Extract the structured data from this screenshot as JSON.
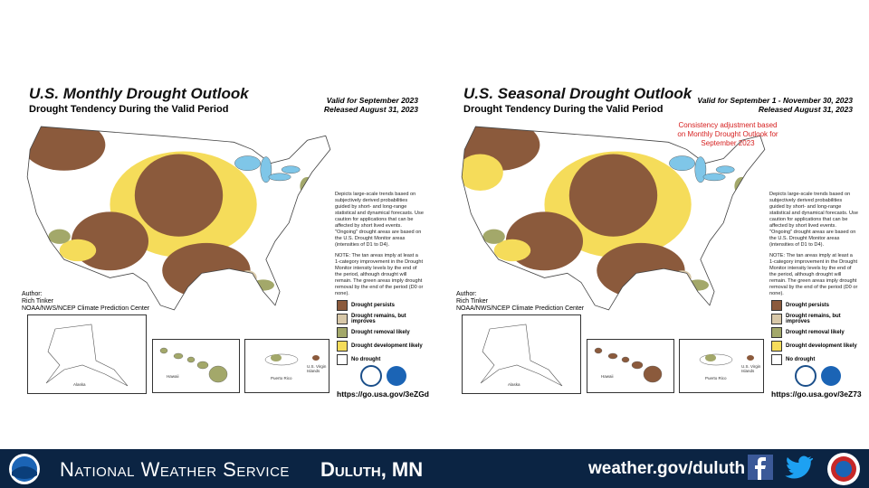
{
  "panels": [
    {
      "title": "U.S. Monthly Drought Outlook",
      "subtitle": "Drought Tendency During the Valid Period",
      "valid": "Valid for September 2023",
      "released": "Released August 31, 2023",
      "description": "Depicts large-scale trends based on subjectively derived probabilities guided by short- and long-range statistical and dynamical forecasts. Use caution for applications that can be affected by short lived events. \"Ongoing\" drought areas are based on the U.S. Drought Monitor areas (intensities of D1 to D4).",
      "note": "NOTE: The tan areas imply at least a 1-category improvement in the Drought Monitor intensity levels by the end of the period, although drought will remain. The green areas imply drought removal by the end of the period (D0 or none).",
      "author": {
        "label": "Author:",
        "name": "Rich Tinker",
        "org": "NOAA/NWS/NCEP Climate Prediction Center"
      },
      "legend": [
        {
          "label": "Drought persists",
          "color": "#8b5a3c"
        },
        {
          "label": "Drought remains, but improves",
          "color": "#d8c8a8"
        },
        {
          "label": "Drought removal likely",
          "color": "#a3a86a"
        },
        {
          "label": "Drought development likely",
          "color": "#f5dc5a"
        },
        {
          "label": "No drought",
          "color": "#ffffff"
        }
      ],
      "insets": [
        "Alaska",
        "Hawaii",
        "Puerto Rico",
        "U.S. Virgin Islands"
      ],
      "url": "https://go.usa.gov/3eZGd"
    },
    {
      "title": "U.S. Seasonal Drought Outlook",
      "subtitle": "Drought Tendency During the Valid Period",
      "valid": "Valid for September 1 - November 30, 2023",
      "released": "Released August 31, 2023",
      "adjustment": "Consistency adjustment based on Monthly Drought Outlook for September 2023",
      "description": "Depicts large-scale trends based on subjectively derived probabilities guided by short- and long-range statistical and dynamical forecasts. Use caution for applications that can be affected by short lived events. \"Ongoing\" drought areas are based on the U.S. Drought Monitor areas (intensities of D1 to D4).",
      "note": "NOTE: The tan areas imply at least a 1-category improvement in the Drought Monitor intensity levels by the end of the period, although drought will remain. The green areas imply drought removal by the end of the period (D0 or none).",
      "author": {
        "label": "Author:",
        "name": "Rich Tinker",
        "org": "NOAA/NWS/NCEP Climate Prediction Center"
      },
      "legend": [
        {
          "label": "Drought persists",
          "color": "#8b5a3c"
        },
        {
          "label": "Drought remains, but improves",
          "color": "#d8c8a8"
        },
        {
          "label": "Drought removal likely",
          "color": "#a3a86a"
        },
        {
          "label": "Drought development likely",
          "color": "#f5dc5a"
        },
        {
          "label": "No drought",
          "color": "#ffffff"
        }
      ],
      "insets": [
        "Alaska",
        "Hawaii",
        "Puerto Rico",
        "U.S. Virgin Islands"
      ],
      "url": "https://go.usa.gov/3eZ73"
    }
  ],
  "footer": {
    "org": "National Weather Service",
    "office": "Duluth, MN",
    "url": "weather.gov/duluth"
  }
}
